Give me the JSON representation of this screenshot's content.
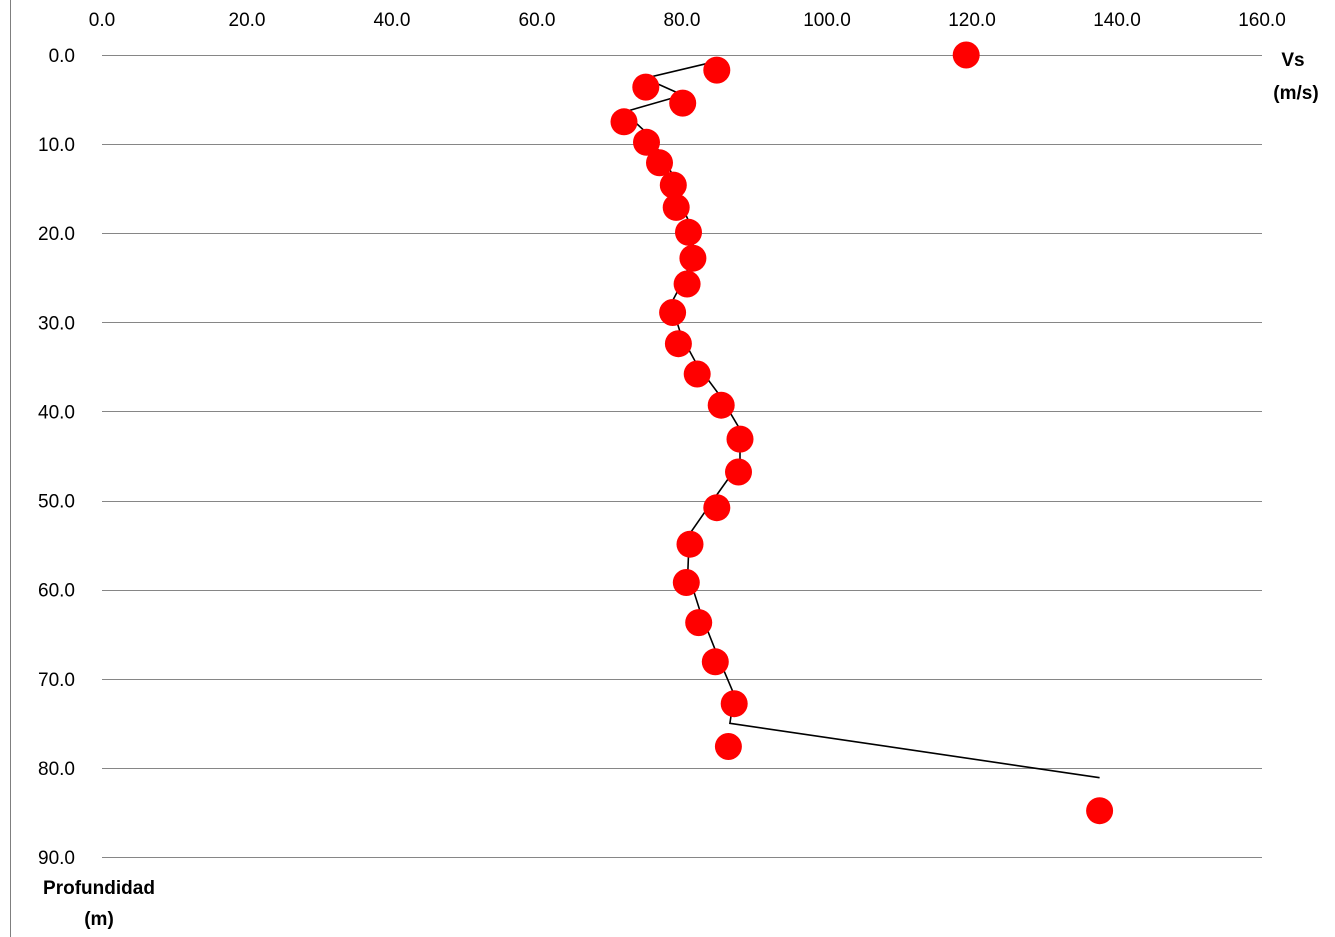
{
  "chart_data": {
    "type": "scatter",
    "x_axis": {
      "label": [
        "Vs",
        "(m/s)"
      ],
      "range": [
        0,
        160
      ],
      "ticks": [
        "0.0",
        "20.0",
        "40.0",
        "60.0",
        "80.0",
        "100.0",
        "120.0",
        "140.0",
        "160.0"
      ],
      "tick_values": [
        0,
        20,
        40,
        60,
        80,
        100,
        120,
        140,
        160
      ],
      "position": "top"
    },
    "y_axis": {
      "label": [
        "Profundidad",
        "(m)"
      ],
      "range": [
        0,
        90
      ],
      "inverted": true,
      "ticks": [
        "0.0",
        "10.0",
        "20.0",
        "30.0",
        "40.0",
        "50.0",
        "60.0",
        "70.0",
        "80.0",
        "90.0"
      ],
      "tick_values": [
        0,
        10,
        20,
        30,
        40,
        50,
        60,
        70,
        80,
        90
      ]
    },
    "grid": "horizontal",
    "series": [
      {
        "kind": "points",
        "color": "#ff0000",
        "points": [
          [
            119.2,
            0.0
          ],
          [
            84.8,
            1.7
          ],
          [
            75.0,
            3.6
          ],
          [
            80.1,
            5.4
          ],
          [
            72.0,
            7.5
          ],
          [
            75.1,
            9.8
          ],
          [
            76.9,
            12.1
          ],
          [
            78.8,
            14.6
          ],
          [
            79.2,
            17.1
          ],
          [
            80.9,
            19.9
          ],
          [
            81.5,
            22.8
          ],
          [
            80.7,
            25.7
          ],
          [
            78.7,
            28.9
          ],
          [
            79.5,
            32.4
          ],
          [
            82.1,
            35.8
          ],
          [
            85.4,
            39.3
          ],
          [
            88.0,
            43.1
          ],
          [
            87.8,
            46.8
          ],
          [
            84.8,
            50.8
          ],
          [
            81.1,
            54.9
          ],
          [
            80.6,
            59.2
          ],
          [
            82.3,
            63.7
          ],
          [
            84.6,
            68.1
          ],
          [
            87.2,
            72.8
          ],
          [
            86.4,
            77.6
          ],
          [
            137.6,
            84.8
          ]
        ]
      },
      {
        "kind": "line",
        "color": "#000000",
        "points": [
          [
            84.8,
            0.7
          ],
          [
            74.9,
            2.6
          ],
          [
            80.1,
            4.5
          ],
          [
            72.0,
            6.4
          ],
          [
            75.2,
            8.8
          ],
          [
            77.0,
            11.0
          ],
          [
            78.9,
            13.7
          ],
          [
            79.5,
            16.1
          ],
          [
            81.0,
            18.8
          ],
          [
            81.6,
            21.7
          ],
          [
            80.5,
            24.8
          ],
          [
            78.5,
            27.9
          ],
          [
            79.9,
            31.5
          ],
          [
            82.1,
            34.8
          ],
          [
            85.3,
            38.3
          ],
          [
            88.0,
            42.0
          ],
          [
            88.0,
            45.7
          ],
          [
            84.6,
            49.6
          ],
          [
            81.0,
            53.8
          ],
          [
            80.8,
            58.1
          ],
          [
            82.6,
            62.7
          ],
          [
            84.8,
            67.2
          ],
          [
            87.2,
            71.8
          ],
          [
            86.6,
            75.0
          ],
          [
            137.6,
            81.1
          ]
        ]
      }
    ]
  }
}
